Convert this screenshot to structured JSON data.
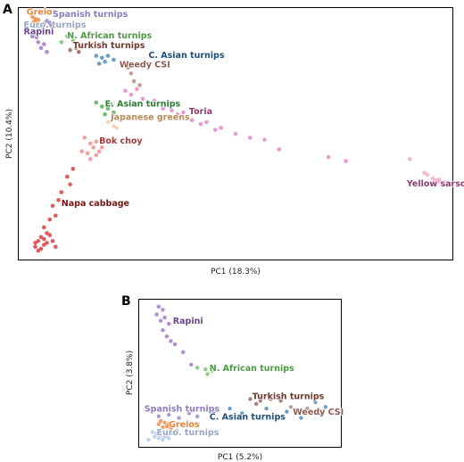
{
  "chart_data": [
    {
      "panel": "A",
      "type": "scatter",
      "xlabel": "PC1 (18.3%)",
      "ylabel": "PC2 (10.4%)",
      "grid": false,
      "groups": [
        {
          "name": "Greios",
          "color": "#e8833a",
          "points": [
            [
              -1.0,
              1.0
            ],
            [
              -0.99,
              0.99
            ],
            [
              -0.98,
              0.985
            ],
            [
              -0.995,
              0.975
            ],
            [
              -0.985,
              0.97
            ]
          ]
        },
        {
          "name": "Spanish turnips",
          "color": "#8d7bbd",
          "points": [
            [
              -0.95,
              0.98
            ],
            [
              -0.94,
              0.97
            ],
            [
              -0.96,
              0.965
            ],
            [
              -0.935,
              0.955
            ]
          ]
        },
        {
          "name": "Euro. turnips",
          "color": "#a8c4e6",
          "points": [
            [
              -0.99,
              0.95
            ],
            [
              -0.98,
              0.94
            ],
            [
              -0.97,
              0.93
            ],
            [
              -0.99,
              0.925
            ],
            [
              -0.96,
              0.95
            ],
            [
              -0.975,
              0.96
            ]
          ]
        },
        {
          "name": "Rapini",
          "color": "#9467bd",
          "points": [
            [
              -1.0,
              0.9
            ],
            [
              -0.98,
              0.87
            ],
            [
              -0.96,
              0.86
            ],
            [
              -0.95,
              0.82
            ],
            [
              -0.97,
              0.84
            ],
            [
              -0.985,
              0.895
            ]
          ]
        },
        {
          "name": "N. African turnips",
          "color": "#66bb55",
          "points": [
            [
              -0.88,
              0.9
            ],
            [
              -0.86,
              0.88
            ],
            [
              -0.9,
              0.87
            ]
          ]
        },
        {
          "name": "Turkish turnips",
          "color": "#8c564b",
          "points": [
            [
              -0.85,
              0.84
            ],
            [
              -0.83,
              0.85
            ],
            [
              -0.87,
              0.83
            ],
            [
              -0.84,
              0.82
            ]
          ]
        },
        {
          "name": "C. Asian turnips",
          "color": "#3b7fb4",
          "points": [
            [
              -0.78,
              0.8
            ],
            [
              -0.76,
              0.79
            ],
            [
              -0.74,
              0.8
            ],
            [
              -0.75,
              0.77
            ],
            [
              -0.72,
              0.78
            ],
            [
              -0.77,
              0.76
            ]
          ]
        },
        {
          "name": "Weedy CSI",
          "color": "#b07d74",
          "points": [
            [
              -0.69,
              0.76
            ],
            [
              -0.67,
              0.74
            ],
            [
              -0.66,
              0.71
            ],
            [
              -0.65,
              0.67
            ],
            [
              -0.63,
              0.65
            ]
          ]
        },
        {
          "name": "E. Asian turnips",
          "color": "#3da43d",
          "points": [
            [
              -0.78,
              0.56
            ],
            [
              -0.76,
              0.54
            ],
            [
              -0.74,
              0.53
            ],
            [
              -0.72,
              0.51
            ],
            [
              -0.75,
              0.5
            ],
            [
              -0.73,
              0.55
            ]
          ]
        },
        {
          "name": "Japanese greens",
          "color": "#f2c9a4",
          "points": [
            [
              -0.74,
              0.46
            ],
            [
              -0.72,
              0.44
            ],
            [
              -0.7,
              0.47
            ],
            [
              -0.71,
              0.43
            ]
          ]
        },
        {
          "name": "Toria",
          "color": "#e377c2",
          "points": [
            [
              -0.68,
              0.62
            ],
            [
              -0.66,
              0.6
            ],
            [
              -0.64,
              0.63
            ],
            [
              -0.62,
              0.58
            ],
            [
              -0.6,
              0.55
            ],
            [
              -0.58,
              0.57
            ],
            [
              -0.55,
              0.53
            ],
            [
              -0.52,
              0.52
            ],
            [
              -0.5,
              0.5
            ],
            [
              -0.48,
              0.51
            ],
            [
              -0.45,
              0.47
            ],
            [
              -0.42,
              0.45
            ],
            [
              -0.4,
              0.46
            ],
            [
              -0.37,
              0.42
            ],
            [
              -0.35,
              0.43
            ],
            [
              -0.3,
              0.4
            ],
            [
              -0.25,
              0.38
            ],
            [
              -0.2,
              0.37
            ],
            [
              -0.15,
              0.32
            ],
            [
              0.02,
              0.28
            ],
            [
              0.08,
              0.26
            ]
          ]
        },
        {
          "name": "Bok choy",
          "color": "#f08080",
          "points": [
            [
              -0.82,
              0.38
            ],
            [
              -0.8,
              0.35
            ],
            [
              -0.78,
              0.36
            ],
            [
              -0.79,
              0.33
            ],
            [
              -0.77,
              0.31
            ],
            [
              -0.81,
              0.3
            ],
            [
              -0.78,
              0.29
            ],
            [
              -0.76,
              0.33
            ],
            [
              -0.75,
              0.37
            ],
            [
              -0.8,
              0.27
            ],
            [
              -0.83,
              0.31
            ]
          ]
        },
        {
          "name": "Napa cabbage",
          "color": "#d62728",
          "points": [
            [
              -0.86,
              0.22
            ],
            [
              -0.88,
              0.18
            ],
            [
              -0.87,
              0.14
            ],
            [
              -0.9,
              0.1
            ],
            [
              -0.91,
              0.06
            ],
            [
              -0.93,
              0.03
            ],
            [
              -0.92,
              -0.02
            ],
            [
              -0.94,
              -0.04
            ],
            [
              -0.96,
              -0.08
            ],
            [
              -0.95,
              -0.11
            ],
            [
              -0.97,
              -0.13
            ],
            [
              -0.98,
              -0.15
            ],
            [
              -0.96,
              -0.17
            ],
            [
              -0.99,
              -0.18
            ],
            [
              -0.97,
              -0.19
            ],
            [
              -0.95,
              -0.16
            ],
            [
              -0.98,
              -0.2
            ],
            [
              -0.96,
              -0.14
            ],
            [
              -0.94,
              -0.12
            ],
            [
              -0.99,
              -0.16
            ],
            [
              -0.93,
              -0.15
            ],
            [
              -0.92,
              -0.18
            ]
          ]
        },
        {
          "name": "Yellow sarsons",
          "color": "#f2a0c4",
          "points": [
            [
              0.3,
              0.27
            ],
            [
              0.35,
              0.2
            ],
            [
              0.36,
              0.19
            ],
            [
              0.38,
              0.17
            ],
            [
              0.39,
              0.16
            ],
            [
              0.4,
              0.155
            ],
            [
              0.41,
              0.15
            ],
            [
              0.42,
              0.152
            ],
            [
              0.4,
              0.165
            ]
          ]
        }
      ],
      "labels": [
        {
          "text": "Greios",
          "color": "#e8833a",
          "at": [
            -1.02,
            1.01
          ]
        },
        {
          "text": "Spanish turnips",
          "color": "#8d7bbd",
          "at": [
            -0.93,
            1.0
          ]
        },
        {
          "text": "Euro. turnips",
          "color": "#9aa7c4",
          "at": [
            -1.03,
            0.945
          ]
        },
        {
          "text": "Rapini",
          "color": "#6b4391",
          "at": [
            -1.03,
            0.91
          ]
        },
        {
          "text": "N. African turnips",
          "color": "#4e9a44",
          "at": [
            -0.88,
            0.89
          ]
        },
        {
          "text": "Turkish turnips",
          "color": "#6e3b2d",
          "at": [
            -0.86,
            0.84
          ]
        },
        {
          "text": "C. Asian turnips",
          "color": "#1f4e79",
          "at": [
            -0.6,
            0.79
          ]
        },
        {
          "text": "Weedy CSI",
          "color": "#8c5a4e",
          "at": [
            -0.7,
            0.74
          ]
        },
        {
          "text": "E. Asian turnips",
          "color": "#2e7d32",
          "at": [
            -0.75,
            0.54
          ]
        },
        {
          "text": "Japanese greens",
          "color": "#b88a56",
          "at": [
            -0.73,
            0.47
          ]
        },
        {
          "text": "Toria",
          "color": "#8e3c70",
          "at": [
            -0.46,
            0.5
          ]
        },
        {
          "text": "Bok choy",
          "color": "#a33a3a",
          "at": [
            -0.77,
            0.35
          ]
        },
        {
          "text": "Napa cabbage",
          "color": "#7a1414",
          "at": [
            -0.9,
            0.03
          ]
        },
        {
          "text": "Yellow sarsons",
          "color": "#8e3c70",
          "at": [
            0.29,
            0.13
          ]
        }
      ],
      "xlim": [
        -1.05,
        0.45
      ],
      "ylim": [
        -0.25,
        1.05
      ]
    },
    {
      "panel": "B",
      "type": "scatter",
      "xlabel": "PC1 (5.2%)",
      "ylabel": "PC2 (3.8%)",
      "grid": false,
      "groups": [
        {
          "name": "Rapini",
          "color": "#9467bd",
          "points": [
            [
              -0.85,
              0.95
            ],
            [
              -0.83,
              0.93
            ],
            [
              -0.86,
              0.9
            ],
            [
              -0.82,
              0.88
            ],
            [
              -0.84,
              0.86
            ],
            [
              -0.8,
              0.84
            ],
            [
              -0.83,
              0.8
            ],
            [
              -0.81,
              0.76
            ],
            [
              -0.79,
              0.73
            ],
            [
              -0.77,
              0.71
            ],
            [
              -0.73,
              0.66
            ],
            [
              -0.69,
              0.58
            ]
          ]
        },
        {
          "name": "N. African turnips",
          "color": "#66bb55",
          "points": [
            [
              -0.66,
              0.56
            ],
            [
              -0.62,
              0.55
            ],
            [
              -0.59,
              0.54
            ],
            [
              -0.61,
              0.52
            ]
          ]
        },
        {
          "name": "Turkish turnips",
          "color": "#8c564b",
          "points": [
            [
              -0.4,
              0.36
            ],
            [
              -0.35,
              0.35
            ],
            [
              -0.3,
              0.36
            ],
            [
              -0.25,
              0.35
            ],
            [
              -0.37,
              0.33
            ]
          ]
        },
        {
          "name": "Weedy CSI",
          "color": "#b07d74",
          "points": [
            [
              -0.2,
              0.31
            ],
            [
              -0.18,
              0.29
            ],
            [
              -0.12,
              0.3
            ],
            [
              -0.1,
              0.27
            ]
          ]
        },
        {
          "name": "C. Asian turnips",
          "color": "#3b7fb4",
          "points": [
            [
              -0.58,
              0.28
            ],
            [
              -0.5,
              0.3
            ],
            [
              -0.44,
              0.27
            ],
            [
              -0.32,
              0.3
            ],
            [
              -0.22,
              0.28
            ],
            [
              -0.15,
              0.24
            ],
            [
              -0.08,
              0.34
            ],
            [
              -0.03,
              0.31
            ],
            [
              -0.01,
              0.28
            ],
            [
              -0.05,
              0.26
            ]
          ]
        },
        {
          "name": "Spanish turnips",
          "color": "#8d7bbd",
          "points": [
            [
              -0.85,
              0.25
            ],
            [
              -0.8,
              0.26
            ],
            [
              -0.75,
              0.24
            ],
            [
              -0.7,
              0.27
            ],
            [
              -0.66,
              0.25
            ]
          ]
        },
        {
          "name": "Greios",
          "color": "#e8833a",
          "points": [
            [
              -0.84,
              0.22
            ],
            [
              -0.82,
              0.21
            ],
            [
              -0.8,
              0.2
            ],
            [
              -0.78,
              0.19
            ],
            [
              -0.83,
              0.18
            ],
            [
              -0.81,
              0.185
            ],
            [
              -0.79,
              0.175
            ],
            [
              -0.85,
              0.2
            ],
            [
              -0.77,
              0.2
            ]
          ]
        },
        {
          "name": "Euro. turnips",
          "color": "#a8c4e6",
          "points": [
            [
              -0.88,
              0.15
            ],
            [
              -0.86,
              0.14
            ],
            [
              -0.84,
              0.13
            ],
            [
              -0.82,
              0.12
            ],
            [
              -0.8,
              0.11
            ],
            [
              -0.87,
              0.12
            ],
            [
              -0.83,
              0.1
            ],
            [
              -0.85,
              0.11
            ],
            [
              -0.9,
              0.1
            ],
            [
              -0.81,
              0.13
            ],
            [
              -0.78,
              0.14
            ],
            [
              -0.76,
              0.16
            ]
          ]
        }
      ],
      "labels": [
        {
          "text": "Rapini",
          "color": "#6b4391",
          "at": [
            -0.78,
            0.84
          ]
        },
        {
          "text": "N. African turnips",
          "color": "#4e9a44",
          "at": [
            -0.6,
            0.54
          ]
        },
        {
          "text": "Turkish turnips",
          "color": "#6e3b2d",
          "at": [
            -0.39,
            0.36
          ]
        },
        {
          "text": "Weedy CSI",
          "color": "#8c5a4e",
          "at": [
            -0.19,
            0.26
          ]
        },
        {
          "text": "C. Asian turnips",
          "color": "#1f4e79",
          "at": [
            -0.6,
            0.23
          ]
        },
        {
          "text": "Spanish turnips",
          "color": "#8d7bbd",
          "at": [
            -0.92,
            0.28
          ]
        },
        {
          "text": "Greios",
          "color": "#e8833a",
          "at": [
            -0.8,
            0.18
          ]
        },
        {
          "text": "Euro. turnips",
          "color": "#9aa7c4",
          "at": [
            -0.86,
            0.13
          ]
        }
      ],
      "xlim": [
        -0.95,
        0.05
      ],
      "ylim": [
        0.05,
        1.0
      ]
    }
  ]
}
